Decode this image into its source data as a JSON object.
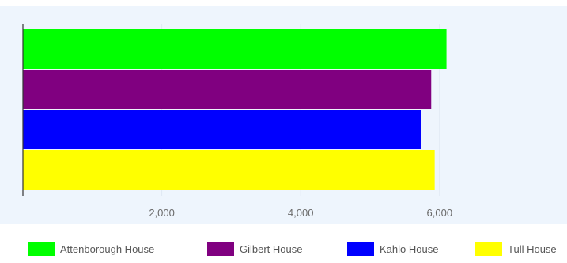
{
  "chart_data": {
    "type": "bar",
    "orientation": "horizontal",
    "title": "",
    "xlabel": "",
    "ylabel": "",
    "xlim": [
      0,
      6500
    ],
    "x_ticks": [
      2000,
      4000,
      6000
    ],
    "x_tick_labels": [
      "2,000",
      "4,000",
      "6,000"
    ],
    "grid": true,
    "legend_position": "bottom",
    "series": [
      {
        "name": "Attenborough House",
        "value": 6100,
        "color": "#00ff00"
      },
      {
        "name": "Gilbert House",
        "value": 5880,
        "color": "#800080"
      },
      {
        "name": "Kahlo House",
        "value": 5730,
        "color": "#0000ff"
      },
      {
        "name": "Tull House",
        "value": 5930,
        "color": "#ffff00"
      }
    ],
    "background_color": "#eef5fd"
  }
}
